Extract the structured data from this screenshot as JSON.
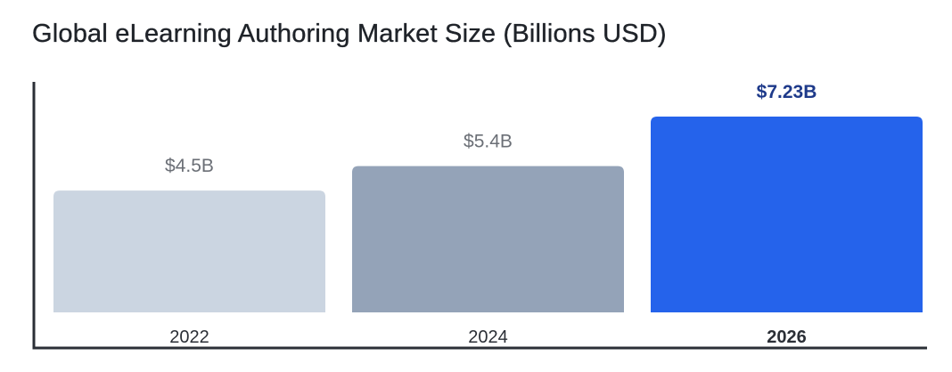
{
  "title": "Global eLearning Authoring Market Size (Billions USD)",
  "colors": {
    "title": "#1f2329",
    "axis": "#2b2f36",
    "label_default": "#6b6f76",
    "label_highlight": "#1e3a8a"
  },
  "chart_data": {
    "type": "bar",
    "title": "Global eLearning Authoring Market Size (Billions USD)",
    "xlabel": "",
    "ylabel": "",
    "categories": [
      "2022",
      "2024",
      "2026"
    ],
    "values": [
      4.5,
      5.4,
      7.23
    ],
    "value_labels": [
      "$4.5B",
      "$5.4B",
      "$7.23B"
    ],
    "bar_colors": [
      "#cbd5e1",
      "#94a3b8",
      "#2563eb"
    ],
    "highlight_index": 2,
    "ylim": [
      0,
      8.5
    ],
    "grid": false,
    "legend": "none"
  }
}
